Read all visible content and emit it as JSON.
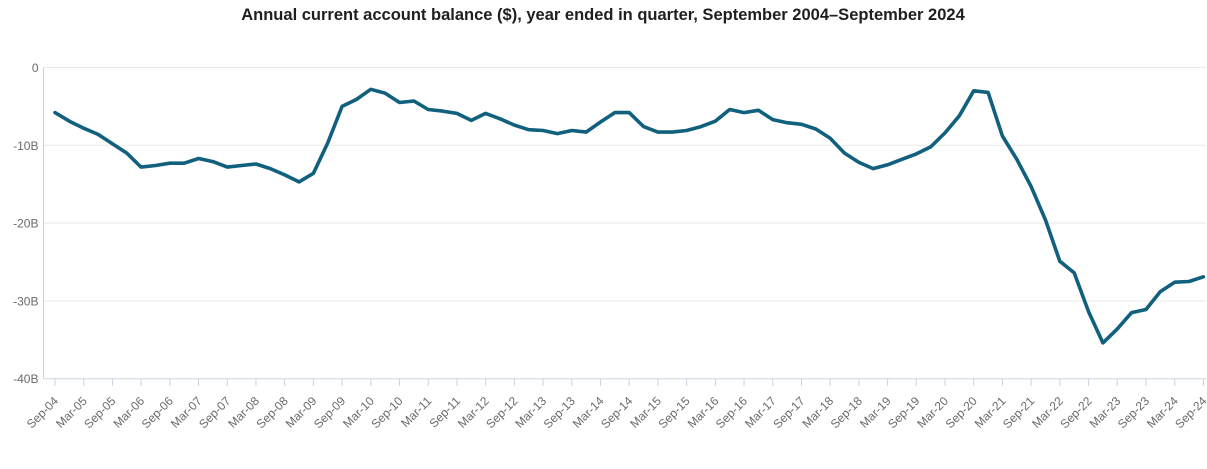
{
  "chart": {
    "title": "Annual current account balance ($), year ended in quarter, September 2004–September 2024"
  },
  "chart_data": {
    "type": "line",
    "title": "Annual current account balance ($), year ended in quarter, September 2004–September 2024",
    "frequency": "quarterly",
    "unit": "billions of dollars",
    "x": [
      "Sep-04",
      "Dec-04",
      "Mar-05",
      "Jun-05",
      "Sep-05",
      "Dec-05",
      "Mar-06",
      "Jun-06",
      "Sep-06",
      "Dec-06",
      "Mar-07",
      "Jun-07",
      "Sep-07",
      "Dec-07",
      "Mar-08",
      "Jun-08",
      "Sep-08",
      "Dec-08",
      "Mar-09",
      "Jun-09",
      "Sep-09",
      "Dec-09",
      "Mar-10",
      "Jun-10",
      "Sep-10",
      "Dec-10",
      "Mar-11",
      "Jun-11",
      "Sep-11",
      "Dec-11",
      "Mar-12",
      "Jun-12",
      "Sep-12",
      "Dec-12",
      "Mar-13",
      "Jun-13",
      "Sep-13",
      "Dec-13",
      "Mar-14",
      "Jun-14",
      "Sep-14",
      "Dec-14",
      "Mar-15",
      "Jun-15",
      "Sep-15",
      "Dec-15",
      "Mar-16",
      "Jun-16",
      "Sep-16",
      "Dec-16",
      "Mar-17",
      "Jun-17",
      "Sep-17",
      "Dec-17",
      "Mar-18",
      "Jun-18",
      "Sep-18",
      "Dec-18",
      "Mar-19",
      "Jun-19",
      "Sep-19",
      "Dec-19",
      "Mar-20",
      "Jun-20",
      "Sep-20",
      "Dec-20",
      "Mar-21",
      "Jun-21",
      "Sep-21",
      "Dec-21",
      "Mar-22",
      "Jun-22",
      "Sep-22",
      "Dec-22",
      "Mar-23",
      "Jun-23",
      "Sep-23",
      "Dec-23",
      "Mar-24",
      "Jun-24",
      "Sep-24"
    ],
    "series": [
      {
        "name": "Annual current account balance ($B)",
        "values": [
          -5.8,
          -6.9,
          -7.8,
          -8.6,
          -9.8,
          -11.0,
          -12.8,
          -12.6,
          -12.3,
          -12.3,
          -11.7,
          -12.1,
          -12.8,
          -12.6,
          -12.4,
          -13.0,
          -13.8,
          -14.7,
          -13.6,
          -9.7,
          -5.0,
          -4.1,
          -2.8,
          -3.3,
          -4.5,
          -4.3,
          -5.4,
          -5.6,
          -5.9,
          -6.8,
          -5.9,
          -6.6,
          -7.4,
          -8.0,
          -8.1,
          -8.5,
          -8.1,
          -8.3,
          -7.0,
          -5.8,
          -5.8,
          -7.6,
          -8.3,
          -8.3,
          -8.1,
          -7.6,
          -6.9,
          -5.4,
          -5.8,
          -5.5,
          -6.7,
          -7.1,
          -7.3,
          -7.9,
          -9.1,
          -11.0,
          -12.2,
          -13.0,
          -12.5,
          -11.8,
          -11.1,
          -10.2,
          -8.4,
          -6.2,
          -3.0,
          -3.2,
          -8.8,
          -11.8,
          -15.3,
          -19.6,
          -24.9,
          -26.4,
          -31.4,
          -35.4,
          -33.6,
          -31.5,
          -31.1,
          -28.8,
          -27.6,
          -27.5,
          -26.9
        ]
      }
    ],
    "x_tick_labels": [
      "Sep-04",
      "Mar-05",
      "Sep-05",
      "Mar-06",
      "Sep-06",
      "Mar-07",
      "Sep-07",
      "Mar-08",
      "Sep-08",
      "Mar-09",
      "Sep-09",
      "Mar-10",
      "Sep-10",
      "Mar-11",
      "Sep-11",
      "Mar-12",
      "Sep-12",
      "Mar-13",
      "Sep-13",
      "Mar-14",
      "Sep-14",
      "Mar-15",
      "Sep-15",
      "Mar-16",
      "Sep-16",
      "Mar-17",
      "Sep-17",
      "Mar-18",
      "Sep-18",
      "Mar-19",
      "Sep-19",
      "Mar-20",
      "Sep-20",
      "Mar-21",
      "Sep-21",
      "Mar-22",
      "Sep-22",
      "Mar-23",
      "Sep-23",
      "Mar-24",
      "Sep-24"
    ],
    "x_tick_every_n_points": 2,
    "y_tick_labels": [
      "0",
      "-10B",
      "-20B",
      "-30B",
      "-40B"
    ],
    "y_tick_values": [
      0,
      -10,
      -20,
      -30,
      -40
    ],
    "ylim": [
      -40,
      0
    ],
    "grid": "horizontal-only",
    "legend": "none",
    "colors": {
      "line": "#11607d",
      "title_text": "#1f1f1f",
      "tick_text": "#6a6a6a",
      "gridline": "#e9e9e9",
      "axis": "#c8d3e0",
      "background": "#ffffff"
    }
  }
}
